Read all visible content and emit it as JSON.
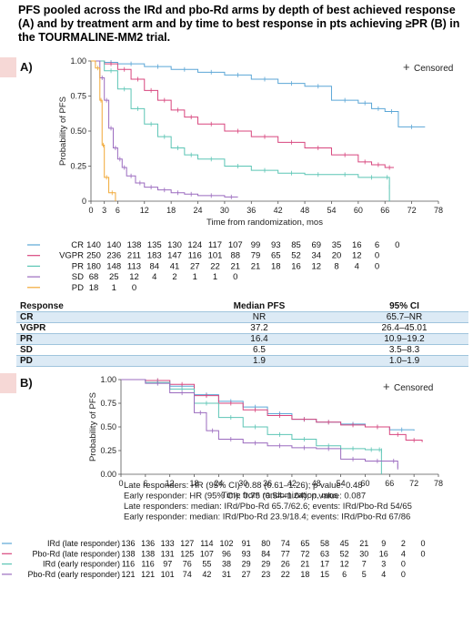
{
  "title": "PFS pooled across the IRd and pbo-Rd arms by depth of best achieved response (A) and by treatment arm and by time to best response in pts achieving ≥PR (B) in the TOURMALINE-MM2 trial.",
  "colors": {
    "accent": "#f6d8d6",
    "table_stripe": "#dceaf5"
  },
  "chart_data": [
    {
      "type": "line",
      "panel": "A)",
      "xlabel": "Time from randomization, mos",
      "ylabel": "Probability of PFS",
      "xticks": [
        0,
        3,
        6,
        12,
        18,
        24,
        30,
        36,
        42,
        48,
        54,
        60,
        66,
        72,
        78
      ],
      "ytick_labels": [
        "1.00",
        "0.75",
        "0.50",
        "0.25",
        "0"
      ],
      "yticks": [
        1.0,
        0.75,
        0.5,
        0.25,
        0
      ],
      "xlim": [
        0,
        78
      ],
      "ylim": [
        0,
        1
      ],
      "legend": {
        "symbol": "+",
        "label": "Censored",
        "placement": "top-right"
      },
      "series": [
        {
          "name": "CR",
          "color": "#5ba6d6",
          "points": [
            [
              0,
              1
            ],
            [
              3,
              0.99
            ],
            [
              6,
              0.98
            ],
            [
              12,
              0.96
            ],
            [
              18,
              0.94
            ],
            [
              24,
              0.92
            ],
            [
              30,
              0.9
            ],
            [
              36,
              0.87
            ],
            [
              42,
              0.84
            ],
            [
              48,
              0.82
            ],
            [
              54,
              0.72
            ],
            [
              60,
              0.7
            ],
            [
              63,
              0.66
            ],
            [
              66,
              0.64
            ],
            [
              69,
              0.53
            ],
            [
              75,
              0.53
            ]
          ]
        },
        {
          "name": "VGPR",
          "color": "#d8467e",
          "points": [
            [
              0,
              1
            ],
            [
              3,
              0.98
            ],
            [
              6,
              0.94
            ],
            [
              9,
              0.87
            ],
            [
              12,
              0.79
            ],
            [
              15,
              0.72
            ],
            [
              18,
              0.65
            ],
            [
              21,
              0.6
            ],
            [
              24,
              0.55
            ],
            [
              30,
              0.5
            ],
            [
              36,
              0.46
            ],
            [
              42,
              0.42
            ],
            [
              48,
              0.38
            ],
            [
              54,
              0.33
            ],
            [
              60,
              0.28
            ],
            [
              63,
              0.26
            ],
            [
              66,
              0.24
            ],
            [
              68,
              0.24
            ]
          ]
        },
        {
          "name": "PR",
          "color": "#5cc5b5",
          "points": [
            [
              0,
              1
            ],
            [
              3,
              0.93
            ],
            [
              6,
              0.8
            ],
            [
              9,
              0.66
            ],
            [
              12,
              0.55
            ],
            [
              15,
              0.46
            ],
            [
              18,
              0.38
            ],
            [
              21,
              0.33
            ],
            [
              24,
              0.3
            ],
            [
              30,
              0.25
            ],
            [
              36,
              0.22
            ],
            [
              42,
              0.2
            ],
            [
              48,
              0.19
            ],
            [
              54,
              0.19
            ],
            [
              60,
              0.17
            ],
            [
              66,
              0.17
            ],
            [
              67,
              0.1
            ],
            [
              67,
              0
            ]
          ]
        },
        {
          "name": "SD",
          "color": "#9b6bbf",
          "points": [
            [
              0,
              1
            ],
            [
              2,
              0.88
            ],
            [
              3,
              0.72
            ],
            [
              4,
              0.52
            ],
            [
              5,
              0.38
            ],
            [
              6,
              0.3
            ],
            [
              7,
              0.24
            ],
            [
              8,
              0.18
            ],
            [
              10,
              0.13
            ],
            [
              12,
              0.1
            ],
            [
              15,
              0.08
            ],
            [
              18,
              0.06
            ],
            [
              21,
              0.05
            ],
            [
              24,
              0.04
            ],
            [
              30,
              0.03
            ],
            [
              33,
              0.03
            ]
          ]
        },
        {
          "name": "PD",
          "color": "#f1a836",
          "points": [
            [
              0,
              1
            ],
            [
              1,
              0.95
            ],
            [
              2,
              0.72
            ],
            [
              2.5,
              0.4
            ],
            [
              3,
              0.17
            ],
            [
              4,
              0.06
            ],
            [
              5.5,
              0
            ]
          ]
        }
      ],
      "risk_table": [
        {
          "label": "CR",
          "color": "#5ba6d6",
          "values": [
            "140",
            "140",
            "138",
            "135",
            "130",
            "124",
            "117",
            "107",
            "99",
            "93",
            "85",
            "69",
            "35",
            "16",
            "6",
            "0"
          ]
        },
        {
          "label": "VGPR",
          "color": "#d8467e",
          "values": [
            "250",
            "236",
            "211",
            "183",
            "147",
            "116",
            "101",
            "88",
            "79",
            "65",
            "52",
            "34",
            "20",
            "12",
            "0"
          ]
        },
        {
          "label": "PR",
          "color": "#5cc5b5",
          "values": [
            "180",
            "148",
            "113",
            "84",
            "41",
            "27",
            "22",
            "21",
            "21",
            "18",
            "16",
            "12",
            "8",
            "4",
            "0"
          ]
        },
        {
          "label": "SD",
          "color": "#9b6bbf",
          "values": [
            "68",
            "25",
            "12",
            "4",
            "2",
            "1",
            "1",
            "0"
          ]
        },
        {
          "label": "PD",
          "color": "#f1a836",
          "values": [
            "18",
            "1",
            "0"
          ]
        }
      ]
    },
    {
      "type": "table",
      "headers": [
        "Response",
        "Median PFS",
        "95% CI"
      ],
      "rows": [
        [
          "CR",
          "NR",
          "65.7–NR"
        ],
        [
          "VGPR",
          "37.2",
          "26.4–45.01"
        ],
        [
          "PR",
          "16.4",
          "10.9–19.2"
        ],
        [
          "SD",
          "6.5",
          "3.5–8.3"
        ],
        [
          "PD",
          "1.9",
          "1.0–1.9"
        ]
      ]
    },
    {
      "type": "line",
      "panel": "B)",
      "xlabel": "Time from randomization, mos",
      "ylabel": "Probability of PFS",
      "xticks": [
        0,
        6,
        12,
        18,
        24,
        30,
        36,
        42,
        48,
        54,
        60,
        66,
        72,
        78
      ],
      "ytick_labels": [
        "1.00",
        "0.75",
        "0.50",
        "0.25",
        "0.00"
      ],
      "yticks": [
        1.0,
        0.75,
        0.5,
        0.25,
        0
      ],
      "xlim": [
        0,
        78
      ],
      "ylim": [
        0,
        1
      ],
      "legend": {
        "symbol": "+",
        "label": "Censored",
        "placement": "top-right"
      },
      "annotations": [
        "Late responders: HR (95% CI): 0.88 (0.61–1.26); p value: 0.48",
        "Early responder: HR (95% CI): 0.75 (0.54–1.04); p value: 0.087",
        "Late responders: median: IRd/Pbo-Rd 65.7/62.6; events: IRd/Pbo-Rd 54/65",
        "Early responder: median: IRd/Pbo-Rd 23.9/18.4; events: IRd/Pbo-Rd 67/86"
      ],
      "series": [
        {
          "name": "IRd (late responder)",
          "color": "#5ba6d6",
          "points": [
            [
              0,
              1
            ],
            [
              6,
              0.99
            ],
            [
              12,
              0.93
            ],
            [
              18,
              0.84
            ],
            [
              24,
              0.77
            ],
            [
              30,
              0.71
            ],
            [
              36,
              0.64
            ],
            [
              42,
              0.58
            ],
            [
              48,
              0.55
            ],
            [
              54,
              0.53
            ],
            [
              60,
              0.5
            ],
            [
              66,
              0.47
            ],
            [
              72,
              0.46
            ]
          ]
        },
        {
          "name": "Pbo-Rd (late responder)",
          "color": "#d8467e",
          "points": [
            [
              0,
              1
            ],
            [
              6,
              0.99
            ],
            [
              12,
              0.95
            ],
            [
              18,
              0.83
            ],
            [
              24,
              0.75
            ],
            [
              30,
              0.68
            ],
            [
              36,
              0.62
            ],
            [
              42,
              0.58
            ],
            [
              48,
              0.55
            ],
            [
              54,
              0.52
            ],
            [
              60,
              0.5
            ],
            [
              66,
              0.42
            ],
            [
              70,
              0.36
            ],
            [
              74,
              0.34
            ]
          ]
        },
        {
          "name": "IRd (early responder)",
          "color": "#5cc5b5",
          "points": [
            [
              0,
              1
            ],
            [
              6,
              0.97
            ],
            [
              12,
              0.9
            ],
            [
              18,
              0.75
            ],
            [
              24,
              0.6
            ],
            [
              30,
              0.5
            ],
            [
              36,
              0.42
            ],
            [
              42,
              0.37
            ],
            [
              48,
              0.3
            ],
            [
              54,
              0.27
            ],
            [
              60,
              0.26
            ],
            [
              63,
              0.26
            ],
            [
              64,
              0.25
            ],
            [
              64,
              0
            ]
          ]
        },
        {
          "name": "Pbo-Rd (early responder)",
          "color": "#9b6bbf",
          "points": [
            [
              0,
              1
            ],
            [
              6,
              0.96
            ],
            [
              12,
              0.86
            ],
            [
              18,
              0.65
            ],
            [
              21,
              0.46
            ],
            [
              24,
              0.37
            ],
            [
              30,
              0.33
            ],
            [
              36,
              0.3
            ],
            [
              42,
              0.28
            ],
            [
              48,
              0.27
            ],
            [
              54,
              0.16
            ],
            [
              60,
              0.14
            ],
            [
              66,
              0.14
            ],
            [
              68,
              0.09
            ],
            [
              68,
              0.05
            ]
          ]
        }
      ],
      "risk_table": [
        {
          "label": "IRd (late responder)",
          "color": "#5ba6d6",
          "values": [
            "136",
            "136",
            "133",
            "127",
            "114",
            "102",
            "91",
            "80",
            "74",
            "65",
            "58",
            "45",
            "21",
            "9",
            "2",
            "0"
          ]
        },
        {
          "label": "Pbo-Rd (late responder)",
          "color": "#d8467e",
          "values": [
            "138",
            "138",
            "131",
            "125",
            "107",
            "96",
            "93",
            "84",
            "77",
            "72",
            "63",
            "52",
            "30",
            "16",
            "4",
            "0"
          ]
        },
        {
          "label": "IRd (early responder)",
          "color": "#5cc5b5",
          "values": [
            "116",
            "116",
            "97",
            "76",
            "55",
            "38",
            "29",
            "29",
            "26",
            "21",
            "17",
            "12",
            "7",
            "3",
            "0"
          ]
        },
        {
          "label": "Pbo-Rd (early responder)",
          "color": "#9b6bbf",
          "values": [
            "121",
            "121",
            "101",
            "74",
            "42",
            "31",
            "27",
            "23",
            "22",
            "18",
            "15",
            "6",
            "5",
            "4",
            "0"
          ]
        }
      ]
    }
  ]
}
